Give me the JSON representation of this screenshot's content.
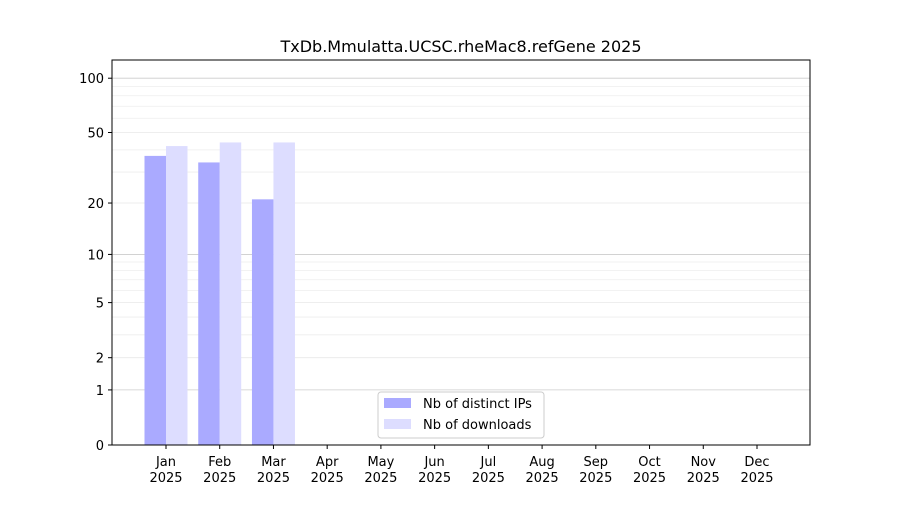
{
  "chart_data": {
    "type": "bar",
    "title": "TxDb.Mmulatta.UCSC.rheMac8.refGene 2025",
    "xlabel": "",
    "ylabel": "",
    "yscale": "log10(1+y)",
    "ylim": [
      0,
      126
    ],
    "yticks": [
      0,
      1,
      2,
      5,
      10,
      20,
      50,
      100
    ],
    "grid": true,
    "legend_position": "bottom-center",
    "categories": [
      "Jan\n2025",
      "Feb\n2025",
      "Mar\n2025",
      "Apr\n2025",
      "May\n2025",
      "Jun\n2025",
      "Jul\n2025",
      "Aug\n2025",
      "Sep\n2025",
      "Oct\n2025",
      "Nov\n2025",
      "Dec\n2025"
    ],
    "series": [
      {
        "name": "Nb of distinct IPs",
        "color": "#aaaaff",
        "values": [
          37,
          34,
          21,
          0,
          0,
          0,
          0,
          0,
          0,
          0,
          0,
          0
        ]
      },
      {
        "name": "Nb of downloads",
        "color": "#ddddff",
        "values": [
          42,
          44,
          44,
          0,
          0,
          0,
          0,
          0,
          0,
          0,
          0,
          0
        ]
      }
    ]
  }
}
